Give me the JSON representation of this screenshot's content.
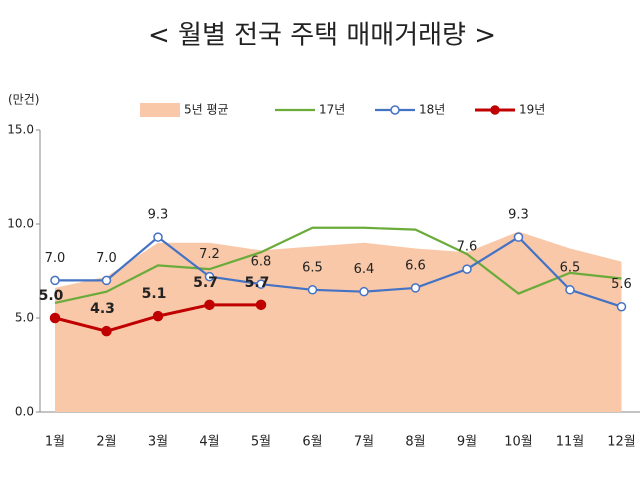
{
  "chart_data": {
    "type": "line",
    "title": "< 월별 전국 주택 매매거래량 >",
    "y_label": "(만건)",
    "categories": [
      "1월",
      "2월",
      "3월",
      "4월",
      "5월",
      "6월",
      "7월",
      "8월",
      "9월",
      "10월",
      "11월",
      "12월"
    ],
    "ylim": [
      0,
      15
    ],
    "yticks": [
      {
        "value": 0,
        "label": "0.0"
      },
      {
        "value": 5,
        "label": "5.0"
      },
      {
        "value": 10,
        "label": "10.0"
      },
      {
        "value": 15,
        "label": "15.0"
      }
    ],
    "grid": false,
    "legend": "top",
    "series": [
      {
        "name": "5년 평균",
        "kind": "area",
        "color": "#f8c8a8",
        "values": [
          6.6,
          7.2,
          9.0,
          9.0,
          8.6,
          8.8,
          9.0,
          8.7,
          8.5,
          9.6,
          8.7,
          8.0
        ]
      },
      {
        "name": "17년",
        "kind": "line",
        "color": "#6aab3a",
        "values": [
          5.8,
          6.4,
          7.8,
          7.6,
          8.5,
          9.8,
          9.8,
          9.7,
          8.4,
          6.3,
          7.4,
          7.1
        ]
      },
      {
        "name": "18년",
        "kind": "line",
        "color": "#4472c4",
        "marker": "open",
        "values": [
          7.0,
          7.0,
          9.3,
          7.2,
          6.8,
          6.5,
          6.4,
          6.6,
          7.6,
          9.3,
          6.5,
          5.6
        ],
        "value_labels": [
          "7.0",
          "7.0",
          "9.3",
          "7.2",
          "6.8",
          "6.5",
          "6.4",
          "6.6",
          "7.6",
          "9.3",
          "6.5",
          "5.6"
        ]
      },
      {
        "name": "19년",
        "kind": "line",
        "color": "#c00000",
        "marker": "filled",
        "values": [
          5.0,
          4.3,
          5.1,
          5.7,
          5.7,
          null,
          null,
          null,
          null,
          null,
          null,
          null
        ],
        "value_labels": [
          "5.0",
          "4.3",
          "5.1",
          "5.7",
          "5.7",
          null,
          null,
          null,
          null,
          null,
          null,
          null
        ]
      }
    ]
  }
}
